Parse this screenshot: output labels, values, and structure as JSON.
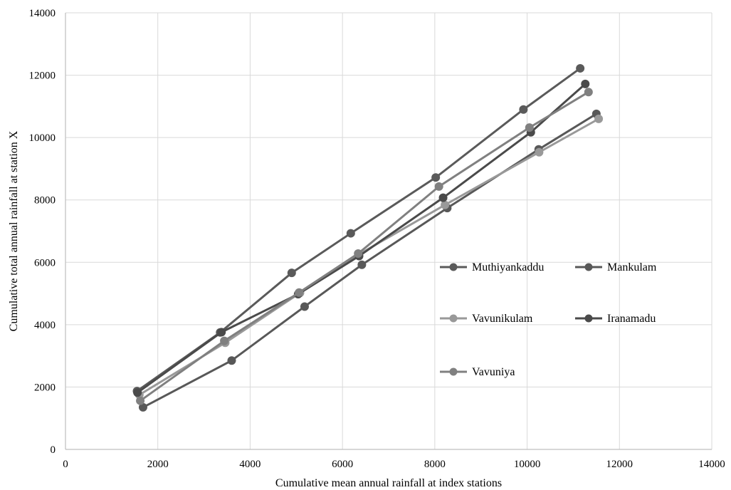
{
  "chart_data": {
    "type": "line",
    "xlabel": "Cumulative mean annual rainfall at index stations",
    "ylabel": "Cumulative total annual rainfall at station X",
    "xlim": [
      0,
      14000
    ],
    "ylim": [
      0,
      14000
    ],
    "xticks": [
      "0",
      "2000",
      "4000",
      "6000",
      "8000",
      "10000",
      "12000",
      "14000"
    ],
    "yticks": [
      "0",
      "2000",
      "4000",
      "6000",
      "8000",
      "10000",
      "12000",
      "14000"
    ],
    "grid": true,
    "legend_position": "right",
    "series": [
      {
        "name": "Muthiyankaddu",
        "color": "#5a5a5a",
        "points": [
          [
            1550,
            1870
          ],
          [
            3350,
            3750
          ],
          [
            4900,
            5660
          ],
          [
            6180,
            6930
          ],
          [
            8020,
            8720
          ],
          [
            9920,
            10900
          ],
          [
            11150,
            12220
          ]
        ]
      },
      {
        "name": "Mankulam",
        "color": "#585858",
        "points": [
          [
            1680,
            1350
          ],
          [
            3600,
            2850
          ],
          [
            5180,
            4580
          ],
          [
            6420,
            5920
          ],
          [
            8270,
            7740
          ],
          [
            10250,
            9620
          ],
          [
            11500,
            10760
          ]
        ]
      },
      {
        "name": "Vavunikulam",
        "color": "#999999",
        "points": [
          [
            1600,
            1750
          ],
          [
            3460,
            3420
          ],
          [
            5080,
            5020
          ],
          [
            6350,
            6250
          ],
          [
            8220,
            7840
          ],
          [
            10260,
            9530
          ],
          [
            11550,
            10600
          ]
        ]
      },
      {
        "name": "Iranamadu",
        "color": "#4a4a4a",
        "points": [
          [
            1560,
            1820
          ],
          [
            3380,
            3760
          ],
          [
            5040,
            4980
          ],
          [
            6360,
            6200
          ],
          [
            8180,
            8070
          ],
          [
            10080,
            10170
          ],
          [
            11260,
            11720
          ]
        ]
      },
      {
        "name": "Vavuniya",
        "color": "#808080",
        "points": [
          [
            1620,
            1560
          ],
          [
            3440,
            3480
          ],
          [
            5060,
            5030
          ],
          [
            6340,
            6280
          ],
          [
            8090,
            8430
          ],
          [
            10050,
            10320
          ],
          [
            11330,
            11460
          ]
        ]
      }
    ]
  }
}
